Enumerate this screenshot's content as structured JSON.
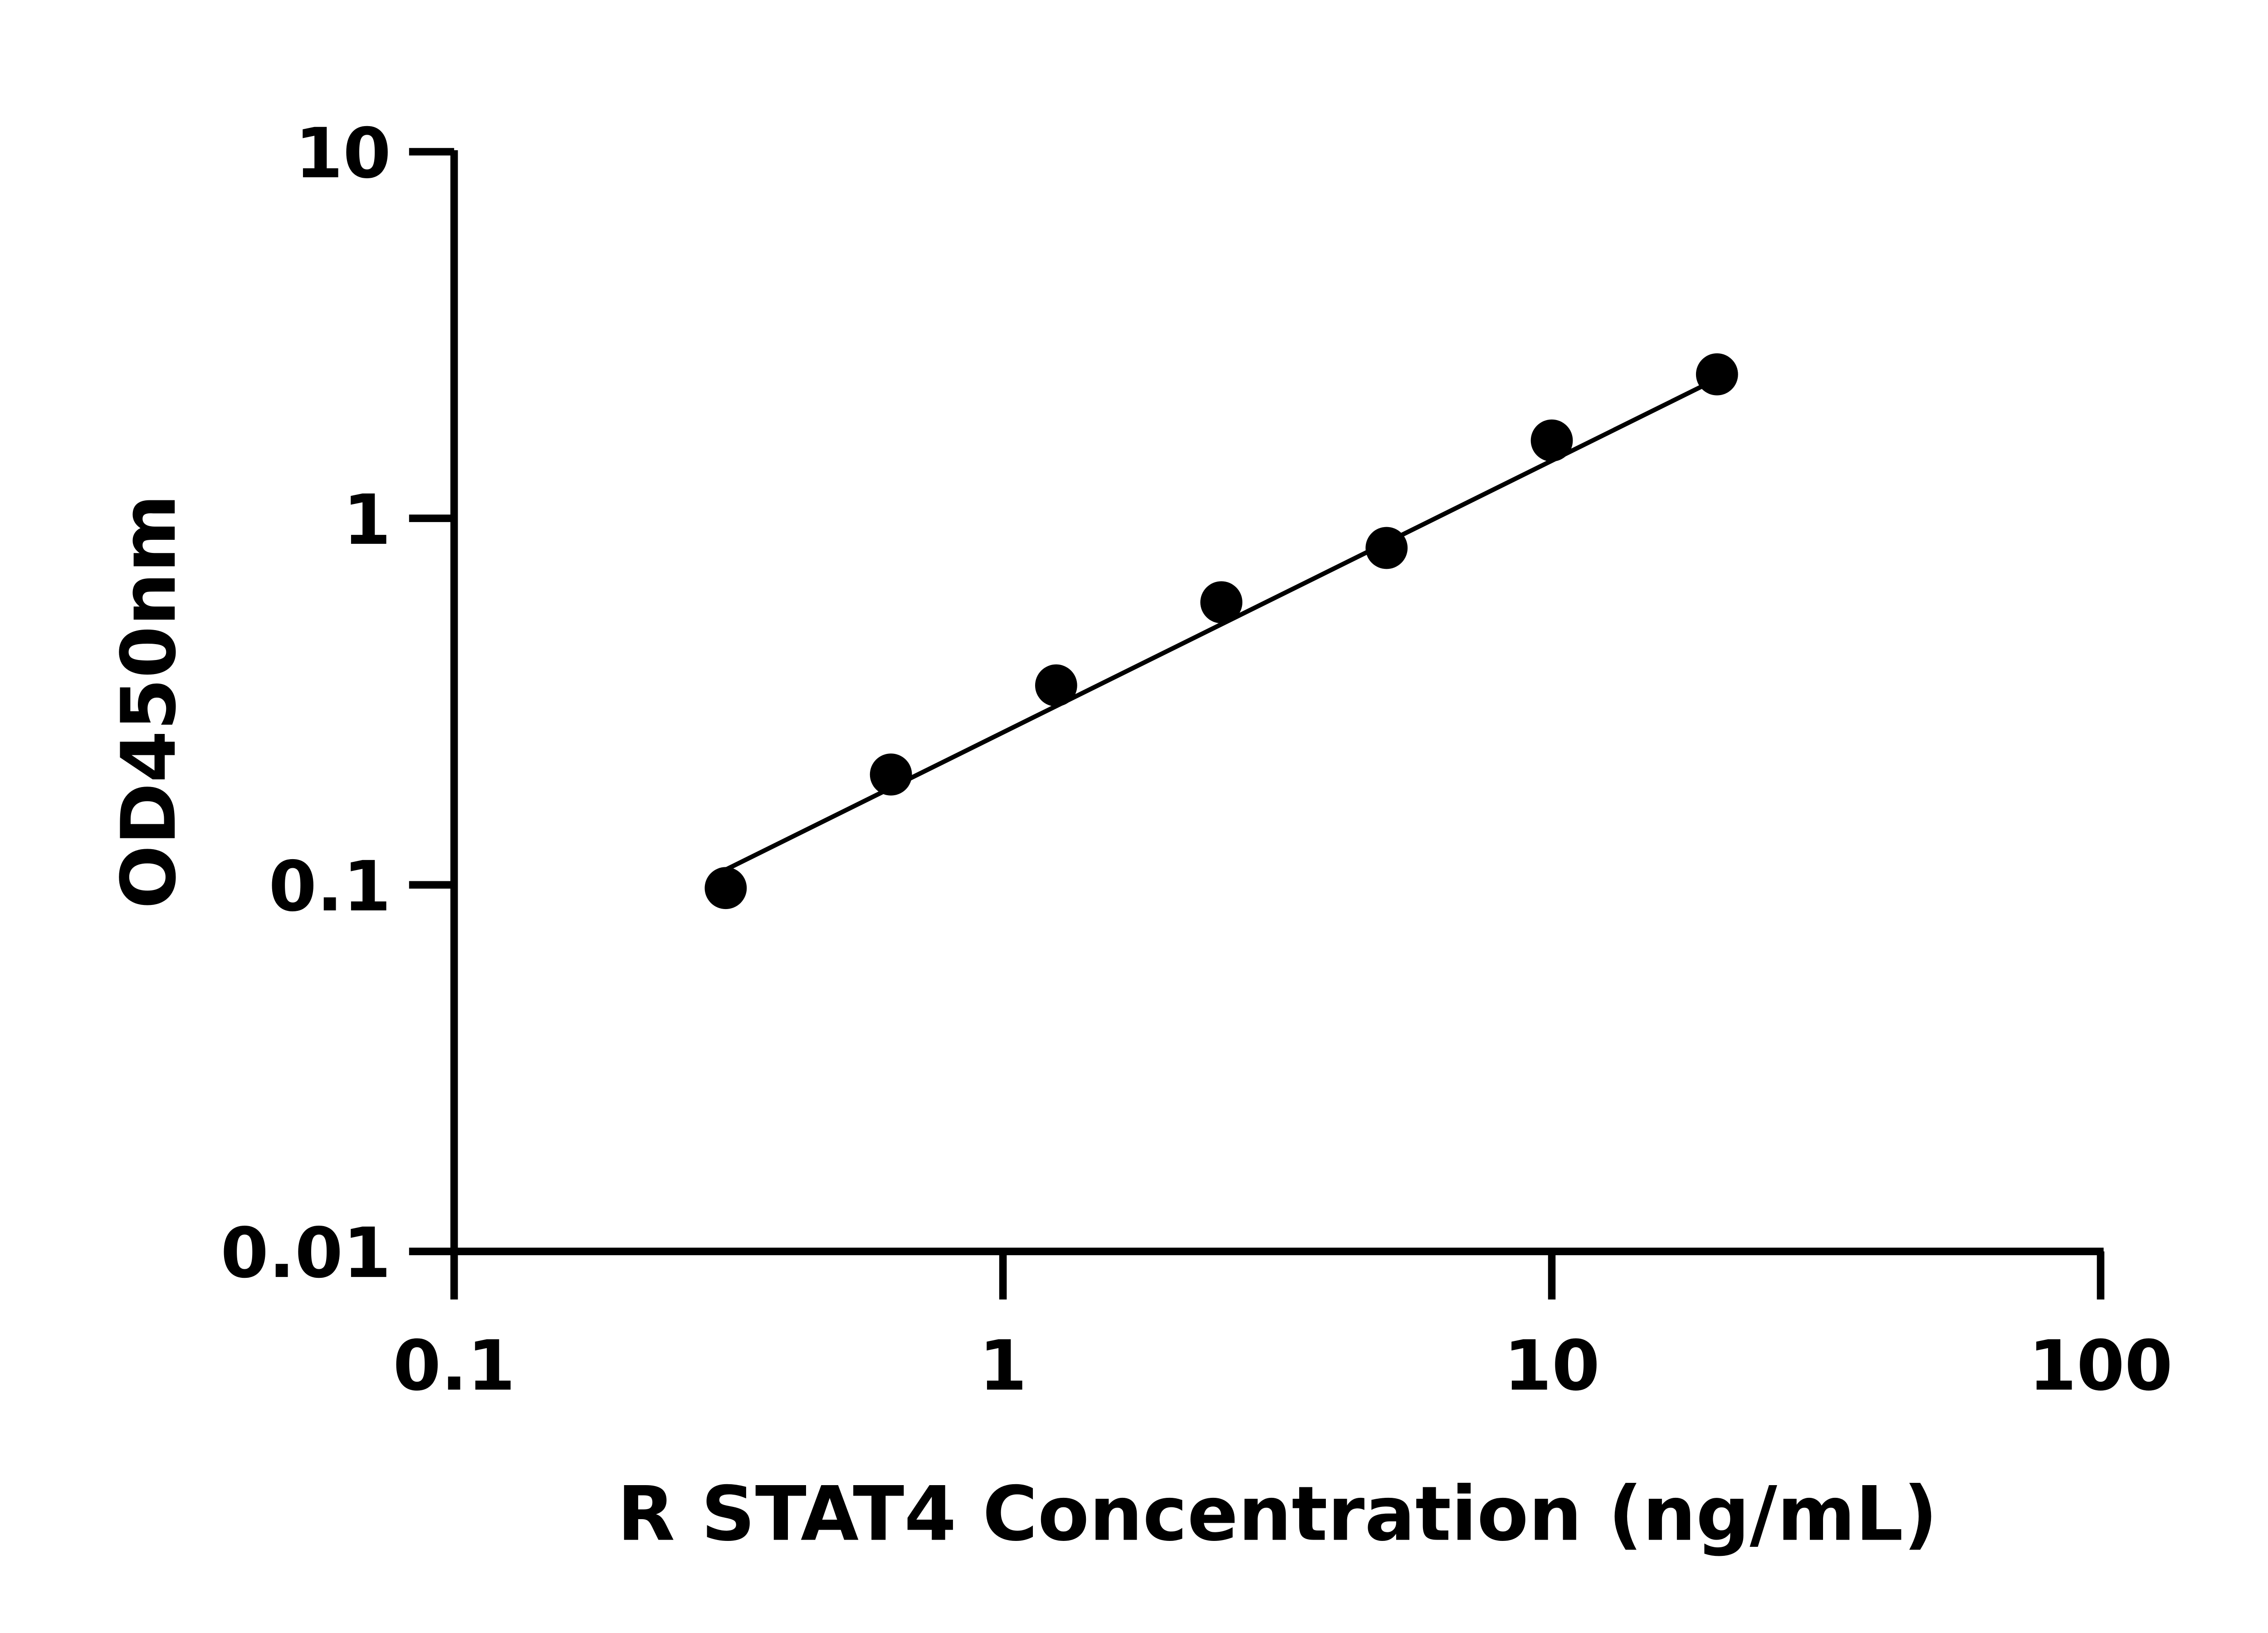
{
  "chart_data": {
    "type": "scatter",
    "title": "",
    "xlabel": "R STAT4 Concentration (ng/mL)",
    "ylabel": "OD450nm",
    "xscale": "log",
    "yscale": "log",
    "xlim": [
      0.1,
      100
    ],
    "ylim": [
      0.01,
      10
    ],
    "xticks": [
      "0.1",
      "1",
      "10",
      "100"
    ],
    "yticks": [
      "0.01",
      "0.1",
      "1",
      "10"
    ],
    "grid": false,
    "x": [
      0.3125,
      0.625,
      1.25,
      2.5,
      5,
      10,
      20
    ],
    "y": [
      0.098,
      0.2,
      0.35,
      0.59,
      0.83,
      1.63,
      2.47
    ],
    "fit_line": {
      "x": [
        0.3125,
        20
      ],
      "y": [
        0.11,
        2.4
      ]
    },
    "marker_color": "#000000",
    "line_color": "#000000"
  }
}
